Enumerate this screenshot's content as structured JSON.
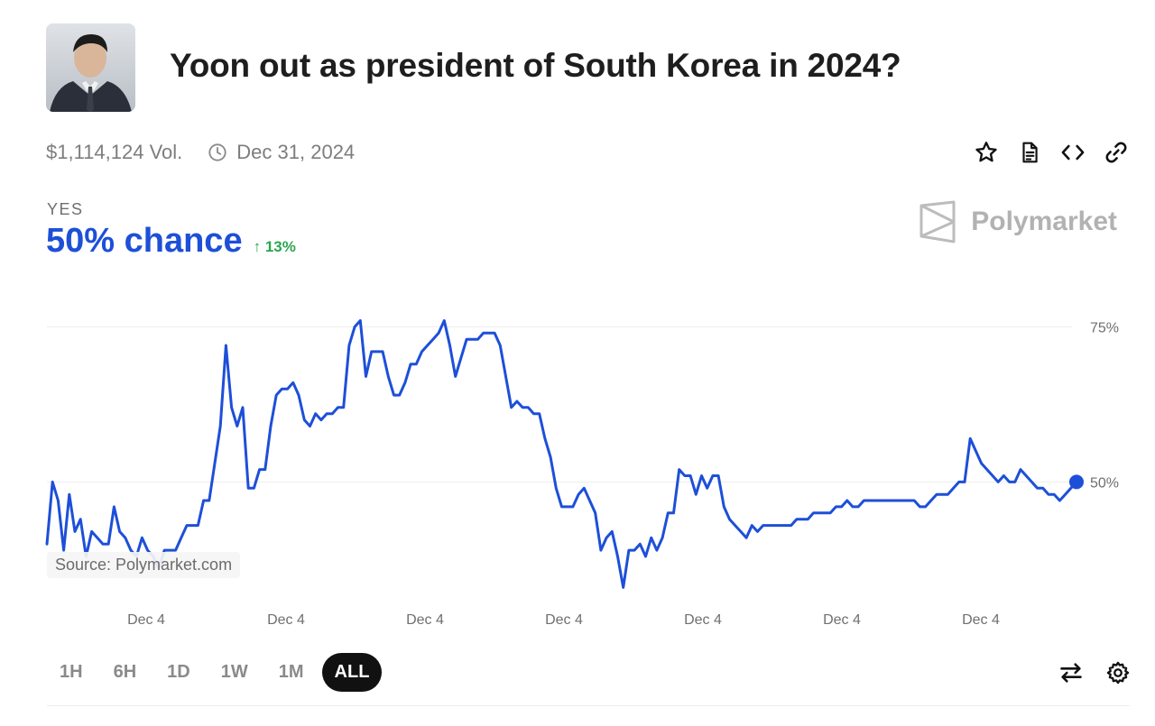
{
  "header": {
    "title": "Yoon out as president of South Korea in 2024?",
    "volume": "$1,114,124 Vol.",
    "end_date": "Dec 31, 2024"
  },
  "outcome": {
    "label": "YES",
    "chance": "50% chance",
    "change": "13%"
  },
  "brand": {
    "name": "Polymarket"
  },
  "source_note": "Source: Polymarket.com",
  "time_ranges": [
    {
      "label": "1H",
      "active": false
    },
    {
      "label": "6H",
      "active": false
    },
    {
      "label": "1D",
      "active": false
    },
    {
      "label": "1W",
      "active": false
    },
    {
      "label": "1M",
      "active": false
    },
    {
      "label": "ALL",
      "active": true
    }
  ],
  "icons": {
    "actions": [
      "star-icon",
      "document-icon",
      "code-icon",
      "link-icon"
    ],
    "tools": [
      "swap-icon",
      "gear-icon"
    ],
    "meta": "clock-icon"
  },
  "colors": {
    "line": "#1d4fd8",
    "up": "#2aa64f",
    "active_range": "#111111"
  },
  "chart_data": {
    "type": "line",
    "title": "",
    "xlabel": "",
    "ylabel": "",
    "x_ticks": [
      "Dec 4",
      "Dec 4",
      "Dec 4",
      "Dec 4",
      "Dec 4",
      "Dec 4",
      "Dec 4"
    ],
    "y_ticks": [
      {
        "value": 75,
        "label": "75%"
      },
      {
        "value": 50,
        "label": "50%"
      }
    ],
    "ylim": [
      30,
      80
    ],
    "grid": "horizontal",
    "series": [
      {
        "values": [
          40,
          50,
          47,
          39,
          48,
          42,
          44,
          38,
          42,
          41,
          40,
          40,
          46,
          42,
          41,
          39,
          38,
          41,
          39,
          38,
          36,
          39,
          39,
          39,
          41,
          43,
          43,
          43,
          47,
          47,
          53,
          59,
          72,
          62,
          59,
          62,
          49,
          49,
          52,
          52,
          59,
          64,
          65,
          65,
          66,
          64,
          60,
          59,
          61,
          60,
          61,
          61,
          62,
          62,
          72,
          75,
          76,
          67,
          71,
          71,
          71,
          67,
          64,
          64,
          66,
          69,
          69,
          71,
          72,
          73,
          74,
          76,
          72,
          67,
          70,
          73,
          73,
          73,
          74,
          74,
          74,
          72,
          67,
          62,
          63,
          62,
          62,
          61,
          61,
          57,
          54,
          49,
          46,
          46,
          46,
          48,
          49,
          47,
          45,
          39,
          41,
          42,
          38,
          33,
          39,
          39,
          40,
          38,
          41,
          39,
          41,
          45,
          45,
          52,
          51,
          51,
          48,
          51,
          49,
          51,
          51,
          46,
          44,
          43,
          42,
          41,
          43,
          42,
          43,
          43,
          43,
          43,
          43,
          43,
          44,
          44,
          44,
          45,
          45,
          45,
          45,
          46,
          46,
          47,
          46,
          46,
          47,
          47,
          47,
          47,
          47,
          47,
          47,
          47,
          47,
          47,
          46,
          46,
          47,
          48,
          48,
          48,
          49,
          50,
          50,
          57,
          55,
          53,
          52,
          51,
          50,
          51,
          50,
          50,
          52,
          51,
          50,
          49,
          49,
          48,
          48,
          47,
          48,
          49,
          50
        ]
      }
    ]
  }
}
